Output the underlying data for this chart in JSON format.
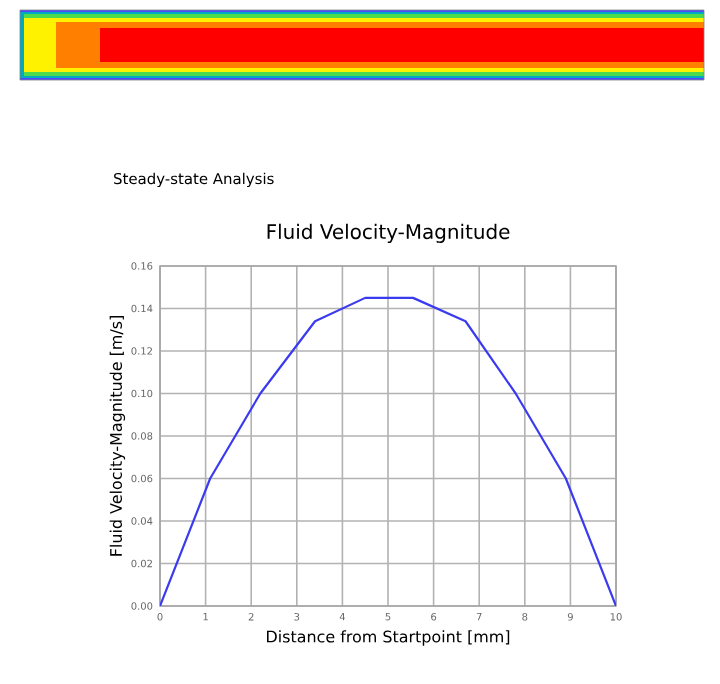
{
  "chart_data": {
    "type": "line",
    "title": "Fluid Velocity-Magnitude",
    "subtitle": "Steady-state Analysis",
    "xlabel": "Distance from Startpoint [mm]",
    "ylabel": "Fluid Velocity-Magnitude [m/s]",
    "series": [
      {
        "color": "#3a3af0",
        "x": [
          0,
          1.1,
          2.2,
          3.4,
          4.5,
          5.55,
          6.7,
          7.8,
          8.9,
          10
        ],
        "values": [
          0,
          0.06,
          0.1,
          0.134,
          0.145,
          0.145,
          0.134,
          0.1,
          0.06,
          0
        ]
      }
    ],
    "xlim": [
      0,
      10
    ],
    "xticks": [
      0,
      1,
      2,
      3,
      4,
      5,
      6,
      7,
      8,
      9,
      10
    ],
    "ylim": [
      0,
      0.16
    ],
    "yticks": [
      {
        "value": 0,
        "label": "0.00"
      },
      {
        "value": 0.02,
        "label": "0.02"
      },
      {
        "value": 0.04,
        "label": "0.04"
      },
      {
        "value": 0.06,
        "label": "0.06"
      },
      {
        "value": 0.08,
        "label": "0.08"
      },
      {
        "value": 0.1,
        "label": "0.10"
      },
      {
        "value": 0.12,
        "label": "0.12"
      },
      {
        "value": 0.14,
        "label": "0.14"
      },
      {
        "value": 0.16,
        "label": "0.16"
      }
    ],
    "grid": true,
    "marker": "none",
    "line_style": "solid"
  }
}
